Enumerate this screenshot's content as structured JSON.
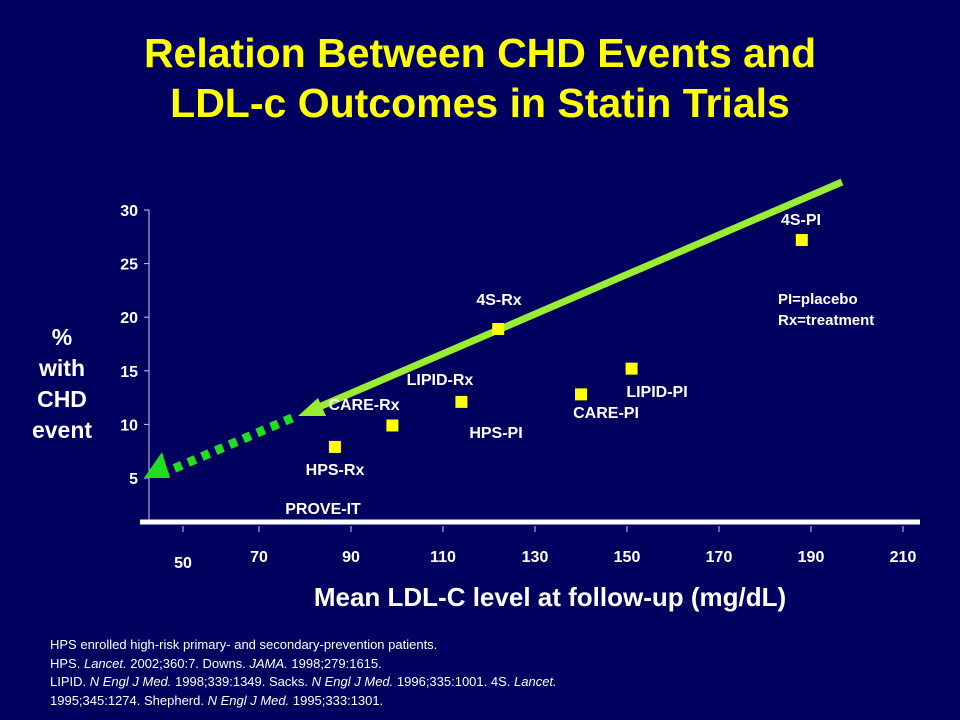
{
  "title_lines": [
    "Relation Between CHD Events and",
    "LDL-c Outcomes in Statin Trials"
  ],
  "chart_data": {
    "type": "scatter",
    "xlabel": "Mean LDL-C level at follow-up (mg/dL)",
    "ylabel_lines": [
      "%",
      "with",
      "CHD",
      "event"
    ],
    "x_ticks": [
      50,
      70,
      90,
      110,
      130,
      150,
      170,
      190,
      210
    ],
    "y_ticks": [
      5,
      10,
      15,
      20,
      25,
      30
    ],
    "points": [
      {
        "name": "HPS-Rx",
        "x": 86.5,
        "y": 7.9
      },
      {
        "name": "CARE-Rx",
        "x": 99,
        "y": 9.9
      },
      {
        "name": "LIPID-Rx / HPS-PI",
        "x": 114,
        "y": 12.1
      },
      {
        "name": "4S-Rx",
        "x": 122,
        "y": 18.9
      },
      {
        "name": "CARE-PI",
        "x": 140,
        "y": 12.8
      },
      {
        "name": "LIPID-PI",
        "x": 151,
        "y": 15.2
      },
      {
        "name": "4S-PI",
        "x": 188,
        "y": 27.2
      }
    ],
    "point_labels": [
      "HPS-Rx",
      "CARE-Rx",
      "LIPID-Rx",
      "HPS-PI",
      "4S-Rx",
      "CARE-PI",
      "LIPID-PI",
      "4S-PI",
      "PROVE-IT"
    ],
    "legend_lines": [
      "PI=placebo",
      "Rx=treatment"
    ],
    "colors": {
      "background": "#00005e",
      "title": "#ffff00",
      "points": "#ffff00",
      "trend_line": "#99ee33",
      "trend_extrapolation": "#22dd22"
    }
  },
  "footnotes": {
    "line1": "HPS enrolled  high-risk primary- and secondary-prevention  patients.",
    "line2_a": "HPS. ",
    "line2_b": "Lancet.",
    "line2_c": " 2002;360:7.  Downs. ",
    "line2_d": "JAMA.",
    "line2_e": " 1998;279:1615.",
    "line3_a": "LIPID. ",
    "line3_b": "N Engl  J Med.",
    "line3_c": " 1998;339:1349.  Sacks. ",
    "line3_d": "N Engl  J Med.",
    "line3_e": " 1996;335:1001.  4S. ",
    "line3_f": "Lancet.",
    "line4_a": "1995;345:1274.  Shepherd. ",
    "line4_b": "N Engl  J Med.",
    "line4_c": " 1995;333:1301."
  }
}
